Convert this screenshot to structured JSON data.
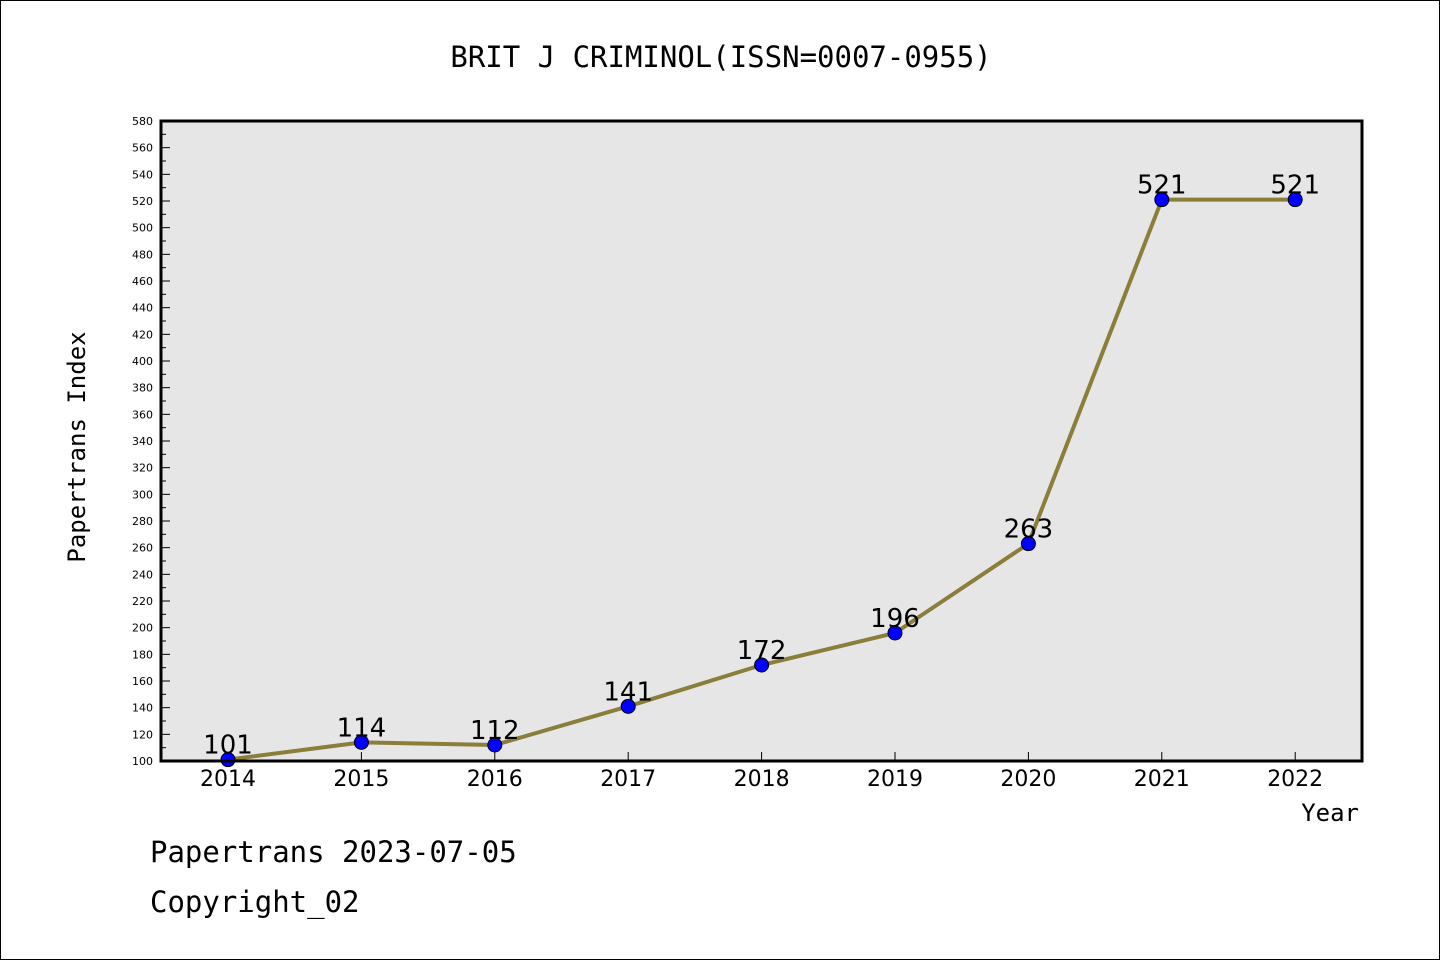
{
  "chart_data": {
    "type": "line",
    "title": "BRIT J CRIMINOL(ISSN=0007-0955)",
    "xlabel": "Year",
    "ylabel": "Papertrans Index",
    "categories": [
      "2014",
      "2015",
      "2016",
      "2017",
      "2018",
      "2019",
      "2020",
      "2021",
      "2022"
    ],
    "series": [
      {
        "values": [
          101,
          114,
          112,
          141,
          172,
          196,
          263,
          521,
          521
        ]
      }
    ],
    "ylim": [
      100,
      580
    ],
    "ytick_step": 20,
    "grid": false,
    "line_color": "#8b7d3a",
    "marker_color": "#0000ff",
    "plot_background": "#e6e6e6"
  },
  "footer": {
    "source": "Papertrans 2023-07-05",
    "copyright": "Copyright_02"
  }
}
